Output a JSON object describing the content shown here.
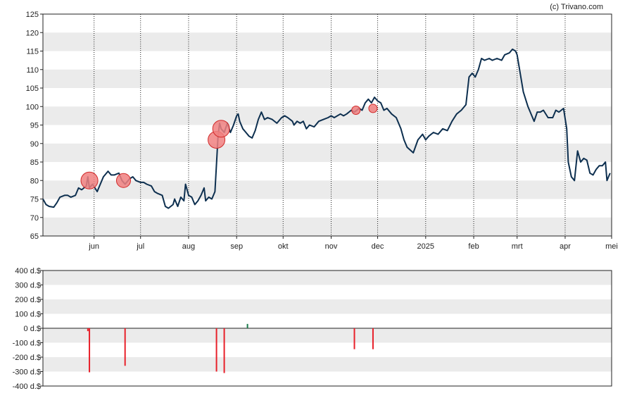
{
  "credit": "(c) Trivano.com",
  "colors": {
    "price_line": "#0d2f4f",
    "band": "#ebebeb",
    "marker_fill": "#f08080",
    "marker_stroke": "#d12a2a",
    "sell_bar": "#e8202a",
    "buy_bar": "#1a7a4a"
  },
  "chart_data": [
    {
      "type": "line",
      "name": "price",
      "ylim": [
        65,
        125
      ],
      "yticks": [
        65,
        70,
        75,
        80,
        85,
        90,
        95,
        100,
        105,
        110,
        115,
        120,
        125
      ],
      "ytick_labels": [
        "65",
        "70",
        "75",
        "80",
        "85",
        "90",
        "95",
        "100",
        "105",
        "110",
        "115",
        "120",
        "125"
      ],
      "grid": true,
      "xlim": [
        "2024-04-29",
        "2025-05-01"
      ],
      "xticks": [
        {
          "date": "2024-06-01",
          "label": "jun"
        },
        {
          "date": "2024-07-01",
          "label": "jul"
        },
        {
          "date": "2024-08-01",
          "label": "aug"
        },
        {
          "date": "2024-09-01",
          "label": "sep"
        },
        {
          "date": "2024-10-01",
          "label": "okt"
        },
        {
          "date": "2024-11-01",
          "label": "nov"
        },
        {
          "date": "2024-12-01",
          "label": "dec"
        },
        {
          "date": "2025-01-01",
          "label": "2025"
        },
        {
          "date": "2025-02-01",
          "label": "feb"
        },
        {
          "date": "2025-03-01",
          "label": "mrt"
        },
        {
          "date": "2025-04-01",
          "label": "apr"
        },
        {
          "date": "2025-05-01",
          "label": "mei"
        }
      ],
      "points": [
        [
          "2024-04-29",
          75
        ],
        [
          "2024-05-01",
          73.5
        ],
        [
          "2024-05-03",
          73
        ],
        [
          "2024-05-06",
          72.8
        ],
        [
          "2024-05-08",
          74
        ],
        [
          "2024-05-10",
          75.5
        ],
        [
          "2024-05-13",
          76
        ],
        [
          "2024-05-15",
          76
        ],
        [
          "2024-05-17",
          75.5
        ],
        [
          "2024-05-20",
          76
        ],
        [
          "2024-05-22",
          78
        ],
        [
          "2024-05-24",
          77.5
        ],
        [
          "2024-05-27",
          78.5
        ],
        [
          "2024-05-28",
          81
        ],
        [
          "2024-05-29",
          78
        ],
        [
          "2024-05-31",
          79
        ],
        [
          "2024-06-03",
          77
        ],
        [
          "2024-06-05",
          79
        ],
        [
          "2024-06-07",
          81
        ],
        [
          "2024-06-10",
          82.5
        ],
        [
          "2024-06-12",
          81.5
        ],
        [
          "2024-06-14",
          81.5
        ],
        [
          "2024-06-17",
          82
        ],
        [
          "2024-06-19",
          80
        ],
        [
          "2024-06-21",
          79
        ],
        [
          "2024-06-24",
          80.5
        ],
        [
          "2024-06-26",
          81
        ],
        [
          "2024-06-28",
          80
        ],
        [
          "2024-07-01",
          79.5
        ],
        [
          "2024-07-03",
          79.5
        ],
        [
          "2024-07-05",
          79
        ],
        [
          "2024-07-08",
          78.5
        ],
        [
          "2024-07-10",
          77
        ],
        [
          "2024-07-12",
          76.5
        ],
        [
          "2024-07-15",
          76
        ],
        [
          "2024-07-17",
          73
        ],
        [
          "2024-07-19",
          72.5
        ],
        [
          "2024-07-22",
          73.5
        ],
        [
          "2024-07-23",
          75
        ],
        [
          "2024-07-25",
          73
        ],
        [
          "2024-07-27",
          75.5
        ],
        [
          "2024-07-29",
          74.5
        ],
        [
          "2024-07-30",
          79
        ],
        [
          "2024-08-01",
          76
        ],
        [
          "2024-08-03",
          75.5
        ],
        [
          "2024-08-05",
          73.5
        ],
        [
          "2024-08-07",
          74.5
        ],
        [
          "2024-08-09",
          76
        ],
        [
          "2024-08-11",
          78
        ],
        [
          "2024-08-12",
          74.5
        ],
        [
          "2024-08-14",
          75.5
        ],
        [
          "2024-08-16",
          75
        ],
        [
          "2024-08-18",
          77
        ],
        [
          "2024-08-20",
          92
        ],
        [
          "2024-08-21",
          95.5
        ],
        [
          "2024-08-22",
          94
        ],
        [
          "2024-08-24",
          93
        ],
        [
          "2024-08-26",
          95.5
        ],
        [
          "2024-08-28",
          93
        ],
        [
          "2024-08-30",
          95
        ],
        [
          "2024-09-01",
          97.5
        ],
        [
          "2024-09-02",
          98
        ],
        [
          "2024-09-03",
          96
        ],
        [
          "2024-09-05",
          94
        ],
        [
          "2024-09-07",
          93
        ],
        [
          "2024-09-09",
          92
        ],
        [
          "2024-09-11",
          91.5
        ],
        [
          "2024-09-13",
          93.5
        ],
        [
          "2024-09-15",
          96.5
        ],
        [
          "2024-09-17",
          98.5
        ],
        [
          "2024-09-19",
          96.5
        ],
        [
          "2024-09-21",
          97
        ],
        [
          "2024-09-24",
          96.5
        ],
        [
          "2024-09-27",
          95.5
        ],
        [
          "2024-09-30",
          97
        ],
        [
          "2024-10-02",
          97.5
        ],
        [
          "2024-10-04",
          97
        ],
        [
          "2024-10-07",
          96
        ],
        [
          "2024-10-08",
          95
        ],
        [
          "2024-10-10",
          96
        ],
        [
          "2024-10-12",
          95.5
        ],
        [
          "2024-10-14",
          96
        ],
        [
          "2024-10-16",
          94
        ],
        [
          "2024-10-18",
          95
        ],
        [
          "2024-10-21",
          94.5
        ],
        [
          "2024-10-24",
          96
        ],
        [
          "2024-10-27",
          96.5
        ],
        [
          "2024-10-30",
          97
        ],
        [
          "2024-11-01",
          97.5
        ],
        [
          "2024-11-03",
          97
        ],
        [
          "2024-11-05",
          97.5
        ],
        [
          "2024-11-07",
          98
        ],
        [
          "2024-11-09",
          97.5
        ],
        [
          "2024-11-11",
          98
        ],
        [
          "2024-11-14",
          99
        ],
        [
          "2024-11-16",
          98.5
        ],
        [
          "2024-11-19",
          99.5
        ],
        [
          "2024-11-21",
          99
        ],
        [
          "2024-11-23",
          101
        ],
        [
          "2024-11-25",
          102
        ],
        [
          "2024-11-27",
          101
        ],
        [
          "2024-11-29",
          102.5
        ],
        [
          "2024-12-01",
          101.5
        ],
        [
          "2024-12-03",
          101
        ],
        [
          "2024-12-05",
          99
        ],
        [
          "2024-12-07",
          99.5
        ],
        [
          "2024-12-10",
          98
        ],
        [
          "2024-12-13",
          97
        ],
        [
          "2024-12-16",
          94
        ],
        [
          "2024-12-18",
          91
        ],
        [
          "2024-12-20",
          89
        ],
        [
          "2024-12-24",
          87.5
        ],
        [
          "2024-12-27",
          91
        ],
        [
          "2024-12-30",
          92.5
        ],
        [
          "2025-01-01",
          91
        ],
        [
          "2025-01-03",
          92
        ],
        [
          "2025-01-06",
          93
        ],
        [
          "2025-01-09",
          92.5
        ],
        [
          "2025-01-12",
          94
        ],
        [
          "2025-01-15",
          93.5
        ],
        [
          "2025-01-18",
          96
        ],
        [
          "2025-01-21",
          98
        ],
        [
          "2025-01-24",
          99
        ],
        [
          "2025-01-27",
          100.5
        ],
        [
          "2025-01-29",
          108
        ],
        [
          "2025-01-31",
          109
        ],
        [
          "2025-02-02",
          108
        ],
        [
          "2025-02-04",
          110
        ],
        [
          "2025-02-06",
          113
        ],
        [
          "2025-02-08",
          112.5
        ],
        [
          "2025-02-11",
          113
        ],
        [
          "2025-02-13",
          112.5
        ],
        [
          "2025-02-16",
          113
        ],
        [
          "2025-02-19",
          112.5
        ],
        [
          "2025-02-21",
          114
        ],
        [
          "2025-02-24",
          114.5
        ],
        [
          "2025-02-26",
          115.5
        ],
        [
          "2025-02-28",
          115
        ],
        [
          "2025-03-01",
          114
        ],
        [
          "2025-03-03",
          109
        ],
        [
          "2025-03-05",
          104
        ],
        [
          "2025-03-08",
          100
        ],
        [
          "2025-03-10",
          98
        ],
        [
          "2025-03-12",
          96
        ],
        [
          "2025-03-14",
          98.5
        ],
        [
          "2025-03-16",
          98.5
        ],
        [
          "2025-03-18",
          99
        ],
        [
          "2025-03-21",
          97
        ],
        [
          "2025-03-24",
          97
        ],
        [
          "2025-03-26",
          99
        ],
        [
          "2025-03-28",
          98.5
        ],
        [
          "2025-03-31",
          99.5
        ],
        [
          "2025-04-02",
          94
        ],
        [
          "2025-04-03",
          85
        ],
        [
          "2025-04-05",
          81
        ],
        [
          "2025-04-07",
          80
        ],
        [
          "2025-04-09",
          88
        ],
        [
          "2025-04-11",
          85
        ],
        [
          "2025-04-13",
          86
        ],
        [
          "2025-04-15",
          85.5
        ],
        [
          "2025-04-17",
          82
        ],
        [
          "2025-04-19",
          81.5
        ],
        [
          "2025-04-21",
          83
        ],
        [
          "2025-04-23",
          84
        ],
        [
          "2025-04-25",
          84
        ],
        [
          "2025-04-27",
          85
        ],
        [
          "2025-04-28",
          80
        ],
        [
          "2025-04-30",
          82
        ]
      ],
      "markers": [
        {
          "date": "2024-05-29",
          "value": 80,
          "size": "large"
        },
        {
          "date": "2024-06-20",
          "value": 80,
          "size": "medium"
        },
        {
          "date": "2024-08-19",
          "value": 91,
          "size": "large"
        },
        {
          "date": "2024-08-22",
          "value": 94,
          "size": "large"
        },
        {
          "date": "2024-11-17",
          "value": 99,
          "size": "small"
        },
        {
          "date": "2024-11-28",
          "value": 99.5,
          "size": "small"
        }
      ]
    },
    {
      "type": "bar",
      "name": "insider_transactions",
      "ylim": [
        -400,
        400
      ],
      "yticks": [
        -400,
        -300,
        -200,
        -100,
        0,
        100,
        200,
        300,
        400
      ],
      "ytick_labels": [
        "-400 d.$",
        "-300 d.$",
        "-200 d.$",
        "-100 d.$",
        "0 d.$",
        "100 d.$",
        "200 d.$",
        "300 d.$",
        "400 d.$"
      ],
      "grid": true,
      "bars": [
        {
          "date": "2024-05-28",
          "value": -20
        },
        {
          "date": "2024-05-29",
          "value": -305
        },
        {
          "date": "2024-06-21",
          "value": -260
        },
        {
          "date": "2024-08-19",
          "value": -300
        },
        {
          "date": "2024-08-24",
          "value": -310
        },
        {
          "date": "2024-09-08",
          "value": 30
        },
        {
          "date": "2024-11-16",
          "value": -145
        },
        {
          "date": "2024-11-28",
          "value": -145
        }
      ]
    }
  ]
}
